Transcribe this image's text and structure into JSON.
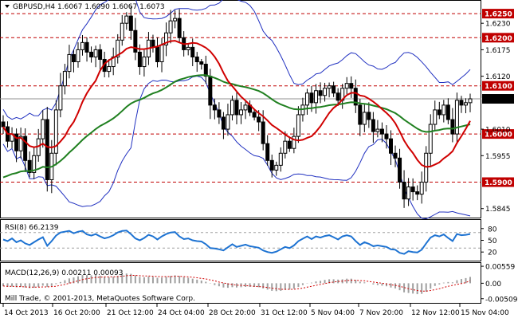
{
  "window": {
    "symbol_line": "GBPUSD,H4  1.6067 1.6090 1.6067 1.6073",
    "watermark": "Mill Trade, © 2001-2013, MetaQuotes Software Corp."
  },
  "colors": {
    "candle": "#000000",
    "ma_fast": "#d00000",
    "ma_slow": "#208020",
    "bands": "#2030c0",
    "rsi": "#1e73d2",
    "macd_hist": "#a0a0a0",
    "macd_signal": "#d00000",
    "level": "#c00000",
    "current_price_bg": "#000000"
  },
  "chart_data": [
    {
      "type": "candlestick",
      "name": "GBPUSD,H4",
      "ohlc_last": {
        "open": 1.6067,
        "high": 1.609,
        "low": 1.6067,
        "close": 1.6073
      },
      "ylim": [
        1.5828,
        1.6275
      ],
      "yticks": [
        "1.6230",
        "1.6175",
        "1.6120",
        "1.6010",
        "1.5955",
        "1.5845"
      ],
      "xticks": [
        "14 Oct 2013",
        "16 Oct 20:00",
        "21 Oct 12:00",
        "24 Oct 04:00",
        "28 Oct 20:00",
        "31 Oct 12:00",
        "5 Nov 04:00",
        "7 Nov 20:00",
        "12 Nov 12:00",
        "15 Nov 04:00"
      ],
      "levels": [
        {
          "value": 1.625,
          "label": "1.6250"
        },
        {
          "value": 1.62,
          "label": "1.6200"
        },
        {
          "value": 1.61,
          "label": "1.6100"
        },
        {
          "value": 1.6,
          "label": "1.6000"
        },
        {
          "value": 1.59,
          "label": "1.5900"
        }
      ],
      "current_price": {
        "value": 1.6073,
        "label": "1.6073"
      },
      "closes": [
        1.6015,
        1.5985,
        1.6,
        1.5965,
        1.5995,
        1.5945,
        1.592,
        1.5955,
        1.599,
        1.603,
        1.5905,
        1.596,
        1.605,
        1.61,
        1.613,
        1.6165,
        1.615,
        1.6175,
        1.619,
        1.617,
        1.616,
        1.6175,
        1.6155,
        1.613,
        1.614,
        1.616,
        1.6195,
        1.623,
        1.6245,
        1.6215,
        1.617,
        1.614,
        1.616,
        1.6195,
        1.618,
        1.615,
        1.6185,
        1.621,
        1.6235,
        1.624,
        1.62,
        1.6175,
        1.618,
        1.616,
        1.615,
        1.6145,
        1.612,
        1.606,
        1.605,
        1.6035,
        1.601,
        1.604,
        1.607,
        1.604,
        1.605,
        1.606,
        1.6045,
        1.6035,
        1.6025,
        1.598,
        1.5945,
        1.5925,
        1.5935,
        1.596,
        1.5985,
        1.597,
        1.5995,
        1.604,
        1.606,
        1.6085,
        1.6065,
        1.609,
        1.608,
        1.6095,
        1.61,
        1.6085,
        1.607,
        1.6095,
        1.6105,
        1.6095,
        1.606,
        1.602,
        1.6045,
        1.603,
        1.6005,
        1.601,
        1.6,
        1.599,
        1.596,
        1.595,
        1.59,
        1.5865,
        1.589,
        1.588,
        1.5875,
        1.59,
        1.596,
        1.602,
        1.605,
        1.604,
        1.606,
        1.603,
        1.6,
        1.607,
        1.606,
        1.6065,
        1.6073
      ]
    },
    {
      "type": "line",
      "name": "RSI(8) 66.2139",
      "ylim": [
        0,
        100
      ],
      "yticks": [
        "80",
        "50",
        "20"
      ],
      "levels": [
        70,
        30
      ],
      "values": [
        52,
        48,
        55,
        45,
        50,
        42,
        38,
        45,
        52,
        58,
        36,
        48,
        62,
        70,
        72,
        74,
        68,
        72,
        74,
        65,
        62,
        66,
        60,
        55,
        58,
        63,
        70,
        74,
        75,
        66,
        55,
        50,
        56,
        64,
        60,
        52,
        60,
        66,
        70,
        71,
        60,
        53,
        55,
        50,
        48,
        47,
        40,
        30,
        29,
        27,
        24,
        32,
        40,
        33,
        36,
        39,
        35,
        33,
        31,
        24,
        20,
        18,
        21,
        27,
        33,
        30,
        37,
        48,
        54,
        60,
        53,
        60,
        57,
        61,
        63,
        58,
        52,
        60,
        63,
        60,
        48,
        38,
        45,
        41,
        35,
        37,
        35,
        33,
        27,
        26,
        18,
        15,
        22,
        20,
        19,
        26,
        42,
        57,
        63,
        60,
        65,
        56,
        48,
        66,
        63,
        64,
        66.2
      ]
    },
    {
      "type": "bar",
      "name": "MACD(12,26,9) 0.00211 0.00093",
      "ylim": [
        -0.0062,
        0.0064
      ],
      "yticks": [
        "0.00559",
        "0.00",
        "-0.00509"
      ],
      "histogram": [
        -0.001,
        -0.0012,
        -0.0011,
        -0.0013,
        -0.0012,
        -0.0014,
        -0.0016,
        -0.0015,
        -0.0012,
        -0.0008,
        -0.0012,
        -0.0009,
        -0.0003,
        0.0004,
        0.001,
        0.0016,
        0.0019,
        0.0023,
        0.0027,
        0.0027,
        0.0026,
        0.0027,
        0.0025,
        0.0021,
        0.002,
        0.0021,
        0.0024,
        0.0029,
        0.0032,
        0.0031,
        0.0026,
        0.0021,
        0.002,
        0.0022,
        0.0021,
        0.0018,
        0.0019,
        0.0021,
        0.0024,
        0.0026,
        0.0024,
        0.002,
        0.0018,
        0.0015,
        0.0012,
        0.0009,
        0.0005,
        -0.0001,
        -0.0006,
        -0.001,
        -0.0014,
        -0.0015,
        -0.0013,
        -0.0014,
        -0.0013,
        -0.0012,
        -0.0012,
        -0.0012,
        -0.0013,
        -0.0017,
        -0.0021,
        -0.0025,
        -0.0026,
        -0.0025,
        -0.0022,
        -0.0021,
        -0.0018,
        -0.0012,
        -0.0006,
        -0.0001,
        0.0002,
        0.0006,
        0.0008,
        0.0011,
        0.0013,
        0.0013,
        0.0012,
        0.0013,
        0.0015,
        0.0015,
        0.0011,
        0.0005,
        0.0003,
        0.0,
        -0.0004,
        -0.0006,
        -0.0008,
        -0.001,
        -0.0014,
        -0.0017,
        -0.0023,
        -0.003,
        -0.0032,
        -0.0034,
        -0.0036,
        -0.0035,
        -0.0028,
        -0.0018,
        -0.0009,
        -0.0004,
        0.0002,
        0.0004,
        0.0003,
        0.001,
        0.0014,
        0.0017,
        0.0021
      ],
      "signal": [
        -0.0009,
        -0.001,
        -0.001,
        -0.0011,
        -0.0011,
        -0.0012,
        -0.0013,
        -0.0013,
        -0.0013,
        -0.0012,
        -0.0012,
        -0.0011,
        -0.001,
        -0.0007,
        -0.0004,
        0.0,
        0.0004,
        0.0008,
        0.0012,
        0.0015,
        0.0017,
        0.0019,
        0.002,
        0.0021,
        0.0021,
        0.0021,
        0.0022,
        0.0023,
        0.0025,
        0.0026,
        0.0026,
        0.0025,
        0.0024,
        0.0024,
        0.0023,
        0.0022,
        0.0022,
        0.0022,
        0.0022,
        0.0023,
        0.0023,
        0.0022,
        0.0021,
        0.002,
        0.0018,
        0.0016,
        0.0014,
        0.0011,
        0.0008,
        0.0004,
        0.0001,
        -0.0002,
        -0.0004,
        -0.0006,
        -0.0007,
        -0.0008,
        -0.0009,
        -0.001,
        -0.0011,
        -0.0012,
        -0.0014,
        -0.0016,
        -0.0018,
        -0.002,
        -0.002,
        -0.002,
        -0.002,
        -0.0018,
        -0.0016,
        -0.0013,
        -0.001,
        -0.0007,
        -0.0004,
        -0.0001,
        0.0002,
        0.0004,
        0.0006,
        0.0007,
        0.0009,
        0.001,
        0.001,
        0.0009,
        0.0008,
        0.0006,
        0.0004,
        0.0002,
        0.0,
        -0.0002,
        -0.0005,
        -0.0007,
        -0.001,
        -0.0014,
        -0.0018,
        -0.0021,
        -0.0024,
        -0.0026,
        -0.0026,
        -0.0024,
        -0.0021,
        -0.0018,
        -0.0014,
        -0.001,
        -0.0007,
        -0.0004,
        -0.0001,
        0.0002,
        0.0009
      ]
    }
  ]
}
